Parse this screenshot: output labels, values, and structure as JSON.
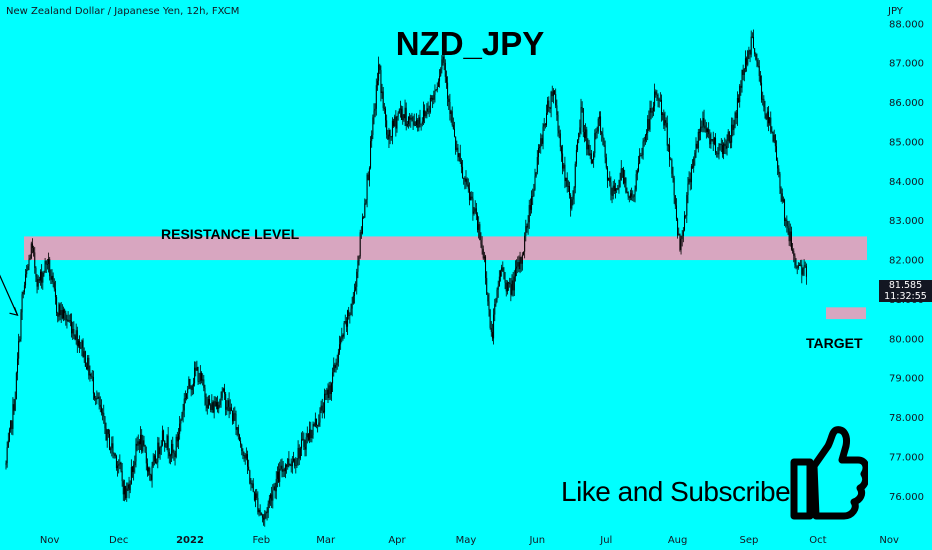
{
  "header": {
    "symbol_title": "New Zealand Dollar / Japanese Yen, 12h, FXCM",
    "currency": "JPY"
  },
  "chart_data": {
    "type": "candlestick",
    "title": "NZD_JPY",
    "y_axis": {
      "ticks": [
        "88.000",
        "87.000",
        "86.000",
        "85.000",
        "84.000",
        "83.000",
        "82.000",
        "81.000",
        "80.000",
        "79.000",
        "78.000",
        "77.000",
        "76.000"
      ],
      "ylim": [
        75.4,
        88.4
      ]
    },
    "x_axis": {
      "ticks": [
        "Nov",
        "Dec",
        "2022",
        "Feb",
        "Mar",
        "Apr",
        "May",
        "Jun",
        "Jul",
        "Aug",
        "Sep",
        "Oct",
        "Nov"
      ]
    },
    "price_path": [
      [
        "Oct 13",
        76.8
      ],
      [
        "Oct 17",
        78.6
      ],
      [
        "Oct 20",
        81.0
      ],
      [
        "Oct 24",
        82.3
      ],
      [
        "Oct 27",
        81.4
      ],
      [
        "Oct 31",
        82.0
      ],
      [
        "Nov 4",
        80.8
      ],
      [
        "Nov 10",
        80.4
      ],
      [
        "Nov 15",
        79.8
      ],
      [
        "Nov 20",
        78.8
      ],
      [
        "Nov 26",
        77.5
      ],
      [
        "Dec 1",
        76.8
      ],
      [
        "Dec 4",
        76.0
      ],
      [
        "Dec 10",
        77.5
      ],
      [
        "Dec 15",
        76.5
      ],
      [
        "Dec 20",
        77.6
      ],
      [
        "Dec 25",
        77.0
      ],
      [
        "Dec 30",
        78.6
      ],
      [
        "Jan 4",
        79.2
      ],
      [
        "Jan 10",
        78.2
      ],
      [
        "Jan 15",
        78.6
      ],
      [
        "Jan 20",
        78.0
      ],
      [
        "Jan 25",
        77.0
      ],
      [
        "Jan 28",
        76.2
      ],
      [
        "Feb 2",
        75.4
      ],
      [
        "Feb 6",
        76.2
      ],
      [
        "Feb 11",
        76.8
      ],
      [
        "Feb 16",
        77.0
      ],
      [
        "Feb 21",
        77.5
      ],
      [
        "Feb 26",
        78.0
      ],
      [
        "Mar 3",
        78.8
      ],
      [
        "Mar 8",
        80.0
      ],
      [
        "Mar 13",
        81.0
      ],
      [
        "Mar 16",
        82.5
      ],
      [
        "Mar 20",
        84.5
      ],
      [
        "Mar 24",
        86.9
      ],
      [
        "Mar 28",
        85.0
      ],
      [
        "Apr 2",
        85.8
      ],
      [
        "Apr 7",
        85.5
      ],
      [
        "Apr 12",
        85.6
      ],
      [
        "Apr 17",
        86.2
      ],
      [
        "Apr 21",
        87.2
      ],
      [
        "Apr 26",
        85.0
      ],
      [
        "Apr 30",
        84.0
      ],
      [
        "May 4",
        83.4
      ],
      [
        "May 9",
        82.0
      ],
      [
        "May 12",
        80.0
      ],
      [
        "May 16",
        81.8
      ],
      [
        "May 20",
        81.2
      ],
      [
        "May 25",
        82.0
      ],
      [
        "May 30",
        83.8
      ],
      [
        "Jun 4",
        85.5
      ],
      [
        "Jun 8",
        86.4
      ],
      [
        "Jun 13",
        84.0
      ],
      [
        "Jun 16",
        83.4
      ],
      [
        "Jun 20",
        85.8
      ],
      [
        "Jun 24",
        84.5
      ],
      [
        "Jun 28",
        85.5
      ],
      [
        "Jul 3",
        83.6
      ],
      [
        "Jul 8",
        84.2
      ],
      [
        "Jul 12",
        83.5
      ],
      [
        "Jul 18",
        85.2
      ],
      [
        "Jul 23",
        86.3
      ],
      [
        "Jul 28",
        85.0
      ],
      [
        "Aug 2",
        82.3
      ],
      [
        "Aug 7",
        84.4
      ],
      [
        "Aug 12",
        85.5
      ],
      [
        "Aug 16",
        85.0
      ],
      [
        "Aug 20",
        84.8
      ],
      [
        "Aug 25",
        85.3
      ],
      [
        "Aug 30",
        87.0
      ],
      [
        "Sep 3",
        87.6
      ],
      [
        "Sep 7",
        86.0
      ],
      [
        "Sep 12",
        85.0
      ],
      [
        "Sep 17",
        83.0
      ],
      [
        "Sep 21",
        82.0
      ],
      [
        "Sep 26",
        81.6
      ]
    ],
    "zones": [
      {
        "label": "RESISTANCE LEVEL",
        "from": 82.0,
        "to": 82.6
      },
      {
        "label": "TARGET",
        "from": 80.5,
        "to": 80.8
      }
    ],
    "projection": [
      [
        "Sep 26",
        81.6
      ],
      [
        "Oct 5",
        82.3
      ],
      [
        "Oct 18",
        80.6
      ]
    ],
    "last_price": "81.585",
    "countdown": "11:32:55",
    "grid": false
  },
  "annotations": {
    "resistance": "RESISTANCE LEVEL",
    "target": "TARGET",
    "cta": "Like and Subscribe"
  },
  "colors": {
    "background": "#00ffff",
    "zone_fill": "#d8a6c0",
    "candle": "#000000",
    "price_tag": "#131722"
  },
  "icons": {
    "cta_icon": "thumbs-up-icon"
  }
}
